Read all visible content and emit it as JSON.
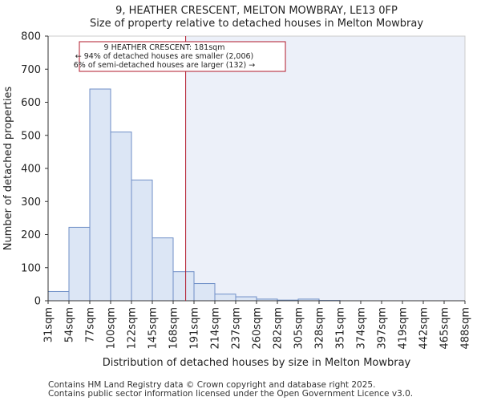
{
  "chart_data": {
    "type": "bar",
    "title": [
      "9, HEATHER CRESCENT, MELTON MOWBRAY, LE13 0FP",
      "Size of property relative to detached houses in Melton Mowbray"
    ],
    "xlabel": "Distribution of detached houses by size in Melton Mowbray",
    "ylabel": "Number of detached properties",
    "bin_edge_labels": [
      "31sqm",
      "54sqm",
      "77sqm",
      "100sqm",
      "122sqm",
      "145sqm",
      "168sqm",
      "191sqm",
      "214sqm",
      "237sqm",
      "260sqm",
      "282sqm",
      "305sqm",
      "328sqm",
      "351sqm",
      "374sqm",
      "397sqm",
      "419sqm",
      "442sqm",
      "465sqm",
      "488sqm"
    ],
    "values": [
      28,
      222,
      640,
      510,
      365,
      190,
      88,
      52,
      20,
      12,
      5,
      2,
      5,
      1,
      0,
      0,
      0,
      0,
      0,
      0
    ],
    "ylim": [
      0,
      800
    ],
    "yticks": [
      0,
      100,
      200,
      300,
      400,
      500,
      600,
      700,
      800
    ],
    "marker_bin_position": 6.6,
    "annotation": {
      "lines": [
        "9 HEATHER CRESCENT: 181sqm",
        "← 94% of detached houses are smaller (2,006)",
        "6% of semi-detached houses are larger (132) →"
      ]
    },
    "colors": {
      "bar_fill": "#dce6f5",
      "bar_edge": "#6f8fc7",
      "highlight_fill": "#ecf0f9",
      "marker_line": "#b2182b",
      "grid_border": "#cccccc"
    }
  },
  "footer": [
    "Contains HM Land Registry data © Crown copyright and database right 2025.",
    "Contains public sector information licensed under the Open Government Licence v3.0."
  ]
}
